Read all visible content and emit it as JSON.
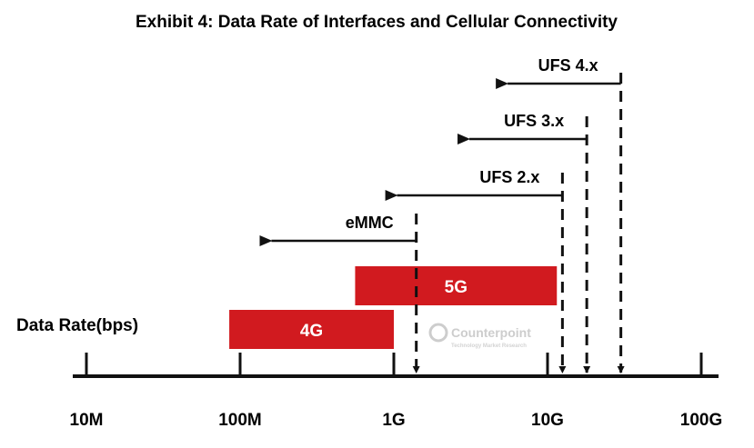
{
  "chart_data": {
    "type": "range-diagram",
    "title": "Exhibit 4: Data Rate of Interfaces and Cellular Connectivity",
    "ylabel": "Data Rate(bps)",
    "x_scale": "log",
    "x_ticks": [
      {
        "label": "10M",
        "value": 10000000.0
      },
      {
        "label": "100M",
        "value": 100000000.0
      },
      {
        "label": "1G",
        "value": 1000000000.0
      },
      {
        "label": "10G",
        "value": 10000000000.0
      },
      {
        "label": "100G",
        "value": 100000000000.0
      }
    ],
    "bars": [
      {
        "label": "4G",
        "from": 85000000.0,
        "to": 1000000000.0
      },
      {
        "label": "5G",
        "from": 560000000.0,
        "to": 11500000000.0
      }
    ],
    "interfaces": [
      {
        "label": "eMMC",
        "max": 1400000000.0,
        "arrow_to": 160000000.0
      },
      {
        "label": "UFS 2.x",
        "max": 12500000000.0,
        "arrow_to": 1050000000.0
      },
      {
        "label": "UFS 3.x",
        "max": 18000000000.0,
        "arrow_to": 3100000000.0
      },
      {
        "label": "UFS 4.x",
        "max": 30000000000.0,
        "arrow_to": 5500000000.0
      }
    ],
    "colors": {
      "bar": "#d11a1f",
      "line": "#111111",
      "watermark": "#c8c8c8"
    }
  },
  "watermark": {
    "name": "Counterpoint",
    "tagline": "Technology Market Research"
  }
}
